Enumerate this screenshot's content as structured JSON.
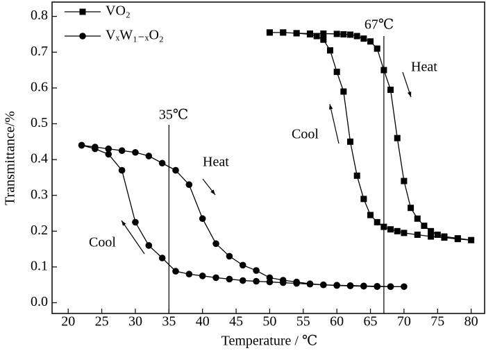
{
  "chart_data": {
    "type": "line",
    "x_label": "Temperature / ℃",
    "y_label": "Transmittance/%",
    "xlim": [
      17.6,
      82
    ],
    "ylim": [
      -0.03,
      0.84
    ],
    "xticks": [
      20,
      25,
      30,
      35,
      40,
      45,
      50,
      55,
      60,
      65,
      70,
      75,
      80
    ],
    "yticks": [
      {
        "value": 0,
        "label": "0.0"
      },
      0.1,
      0.2,
      0.3,
      0.4,
      0.5,
      0.6,
      0.7,
      0.8
    ],
    "legend": "upper left",
    "grid": false,
    "reference_lines": [
      67,
      35
    ],
    "annotations": [
      "67℃",
      "35℃",
      "Heat",
      "Cool",
      "Heat",
      "Cool"
    ],
    "series": [
      {
        "name": "VO₂",
        "marker": "square",
        "color": "#000000",
        "x": [
          50,
          52,
          54,
          56,
          58,
          60,
          61,
          62,
          63,
          64,
          65,
          66,
          67,
          68,
          69,
          70,
          71,
          72,
          73,
          74,
          75,
          76,
          78,
          80,
          78,
          76,
          74,
          72,
          70,
          69,
          68,
          67,
          66,
          65,
          64,
          63,
          62,
          61,
          60,
          59,
          58,
          57,
          56,
          54,
          52,
          50
        ],
        "values": [
          0.755,
          0.755,
          0.753,
          0.752,
          0.752,
          0.751,
          0.75,
          0.749,
          0.745,
          0.738,
          0.73,
          0.71,
          0.65,
          0.595,
          0.46,
          0.34,
          0.265,
          0.235,
          0.215,
          0.2,
          0.19,
          0.185,
          0.18,
          0.175,
          0.178,
          0.182,
          0.185,
          0.19,
          0.195,
          0.2,
          0.205,
          0.212,
          0.225,
          0.245,
          0.29,
          0.355,
          0.45,
          0.59,
          0.645,
          0.705,
          0.735,
          0.745,
          0.75,
          0.753,
          0.755,
          0.755
        ]
      },
      {
        "name": "VₓW₁₋ₓO₂",
        "marker": "circle",
        "color": "#000000",
        "x": [
          22,
          24,
          26,
          28,
          30,
          32,
          34,
          36,
          38,
          40,
          42,
          44,
          46,
          48,
          50,
          52,
          54,
          56,
          58,
          60,
          62,
          64,
          66,
          68,
          70,
          68,
          66,
          64,
          62,
          60,
          58,
          56,
          54,
          52,
          50,
          48,
          46,
          44,
          42,
          40,
          38,
          36,
          34,
          32,
          30,
          28,
          26,
          24,
          22
        ],
        "values": [
          0.44,
          0.435,
          0.43,
          0.425,
          0.42,
          0.41,
          0.39,
          0.37,
          0.33,
          0.235,
          0.165,
          0.13,
          0.105,
          0.09,
          0.07,
          0.063,
          0.058,
          0.053,
          0.05,
          0.048,
          0.047,
          0.046,
          0.045,
          0.045,
          0.045,
          0.045,
          0.046,
          0.047,
          0.048,
          0.049,
          0.05,
          0.052,
          0.054,
          0.056,
          0.058,
          0.06,
          0.062,
          0.066,
          0.07,
          0.075,
          0.08,
          0.088,
          0.125,
          0.16,
          0.225,
          0.37,
          0.415,
          0.43,
          0.44
        ]
      }
    ]
  }
}
